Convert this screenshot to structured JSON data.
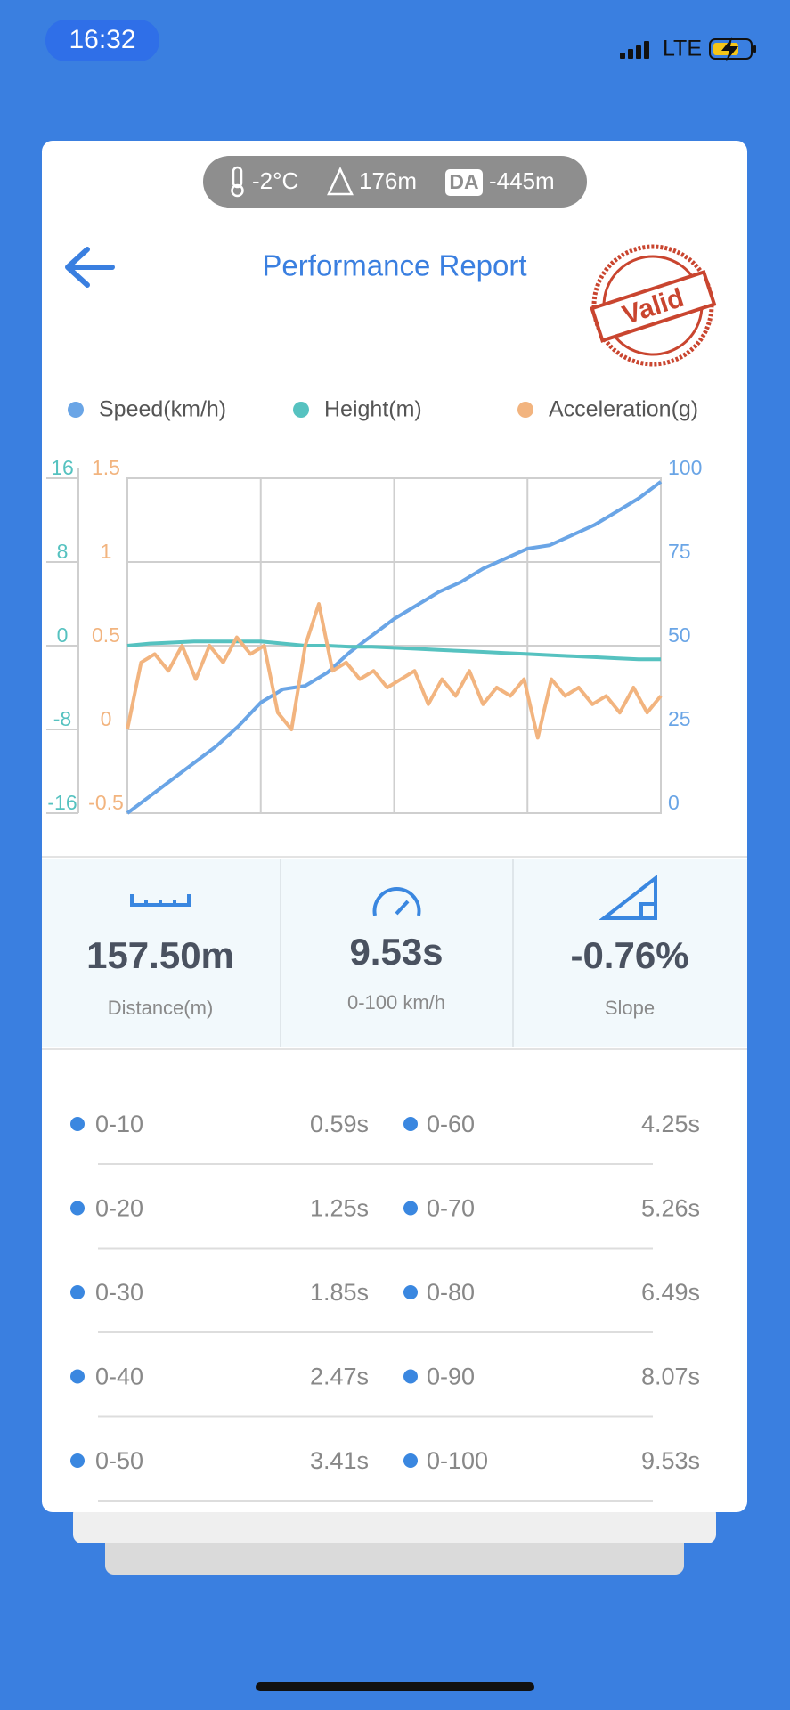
{
  "status_bar": {
    "time": "16:32",
    "network": "LTE"
  },
  "conditions": {
    "temperature": "-2°C",
    "altitude": "176m",
    "da_badge": "DA",
    "density_altitude": "-445m"
  },
  "header": {
    "title": "Performance Report",
    "stamp": "Valid"
  },
  "chart_data": {
    "type": "line",
    "series": [
      {
        "name": "Speed(km/h)",
        "color": "#6aa5e6",
        "axis": "y2",
        "values": [
          0,
          5,
          10,
          15,
          20,
          26,
          33,
          37,
          38,
          42,
          48,
          53,
          58,
          62,
          66,
          69,
          73,
          76,
          79,
          80,
          83,
          86,
          90,
          94,
          99
        ]
      },
      {
        "name": "Height(m)",
        "color": "#56c2c0",
        "axis": "y",
        "values": [
          0,
          0.2,
          0.3,
          0.4,
          0.4,
          0.4,
          0.4,
          0.2,
          0,
          0,
          -0.1,
          -0.1,
          -0.2,
          -0.3,
          -0.4,
          -0.5,
          -0.6,
          -0.7,
          -0.8,
          -0.9,
          -1,
          -1.1,
          -1.2,
          -1.3,
          -1.3
        ]
      },
      {
        "name": "Acceleration(g)",
        "color": "#f2b47f",
        "axis": "y3",
        "values": [
          0,
          0.4,
          0.45,
          0.35,
          0.5,
          0.3,
          0.5,
          0.4,
          0.55,
          0.45,
          0.5,
          0.1,
          0,
          0.5,
          0.75,
          0.35,
          0.4,
          0.3,
          0.35,
          0.25,
          0.3,
          0.35,
          0.15,
          0.3,
          0.2,
          0.35,
          0.15,
          0.25,
          0.2,
          0.3,
          -0.05,
          0.3,
          0.2,
          0.25,
          0.15,
          0.2,
          0.1,
          0.25,
          0.1,
          0.2
        ]
      }
    ],
    "ylim": [
      -16,
      16
    ],
    "yticks": [
      -16,
      -8,
      0,
      8,
      16
    ],
    "y2lim": [
      0,
      100
    ],
    "y2ticks": [
      0,
      25,
      50,
      75,
      100
    ],
    "y3lim": [
      -0.5,
      1.5
    ],
    "y3ticks": [
      -0.5,
      0,
      0.5,
      1,
      1.5
    ],
    "grid": true
  },
  "stats": [
    {
      "value": "157.50m",
      "label": "Distance(m)"
    },
    {
      "value": "9.53s",
      "label": "0-100 km/h"
    },
    {
      "value": "-0.76%",
      "label": "Slope"
    }
  ],
  "splits": [
    {
      "range": "0-10",
      "time": "0.59s"
    },
    {
      "range": "0-20",
      "time": "1.25s"
    },
    {
      "range": "0-30",
      "time": "1.85s"
    },
    {
      "range": "0-40",
      "time": "2.47s"
    },
    {
      "range": "0-50",
      "time": "3.41s"
    },
    {
      "range": "0-60",
      "time": "4.25s"
    },
    {
      "range": "0-70",
      "time": "5.26s"
    },
    {
      "range": "0-80",
      "time": "6.49s"
    },
    {
      "range": "0-90",
      "time": "8.07s"
    },
    {
      "range": "0-100",
      "time": "9.53s"
    }
  ]
}
